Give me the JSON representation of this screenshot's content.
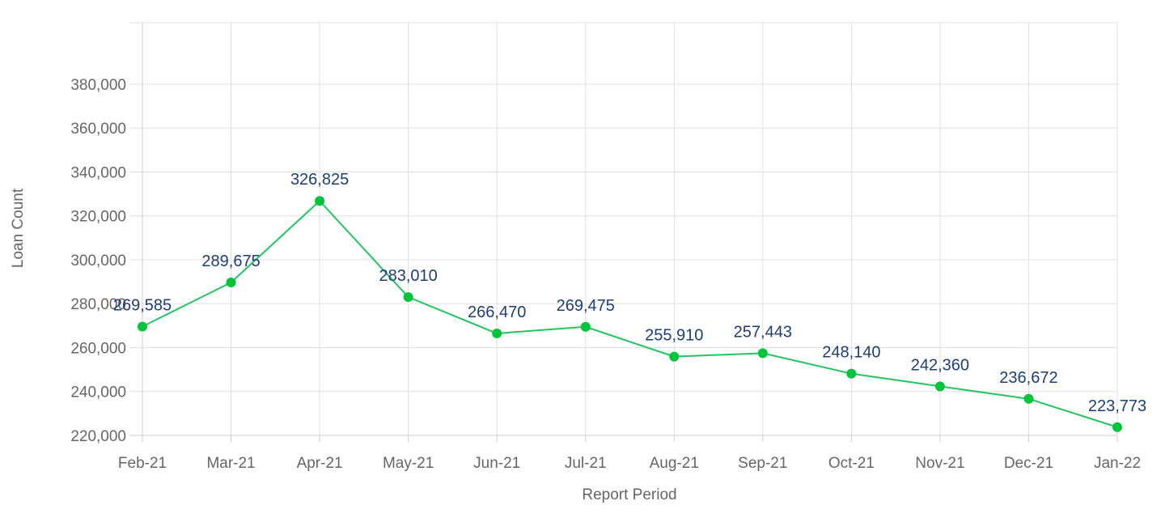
{
  "chart_data": {
    "type": "line",
    "title": "",
    "xlabel": "Report Period",
    "ylabel": "Loan Count",
    "categories": [
      "Feb-21",
      "Mar-21",
      "Apr-21",
      "May-21",
      "Jun-21",
      "Jul-21",
      "Aug-21",
      "Sep-21",
      "Oct-21",
      "Nov-21",
      "Dec-21",
      "Jan-22"
    ],
    "series": [
      {
        "values": [
          269585,
          289675,
          326825,
          283010,
          266470,
          269475,
          255910,
          257443,
          248140,
          242360,
          236672,
          223773
        ],
        "color": "#22c55e",
        "marker_color": "#00c43a"
      }
    ],
    "data_labels": [
      "269,585",
      "289,675",
      "326,825",
      "283,010",
      "266,470",
      "269,475",
      "255,910",
      "257,443",
      "248,140",
      "242,360",
      "236,672",
      "223,773"
    ],
    "y_ticks": [
      "220,000",
      "240,000",
      "260,000",
      "280,000",
      "300,000",
      "320,000",
      "340,000",
      "360,000",
      "380,000"
    ],
    "y_tick_values": [
      220000,
      240000,
      260000,
      280000,
      300000,
      320000,
      340000,
      360000,
      380000
    ],
    "ylim": [
      220000,
      408000
    ],
    "grid": true,
    "legend": "none",
    "label_color": "#1f3d7a"
  }
}
